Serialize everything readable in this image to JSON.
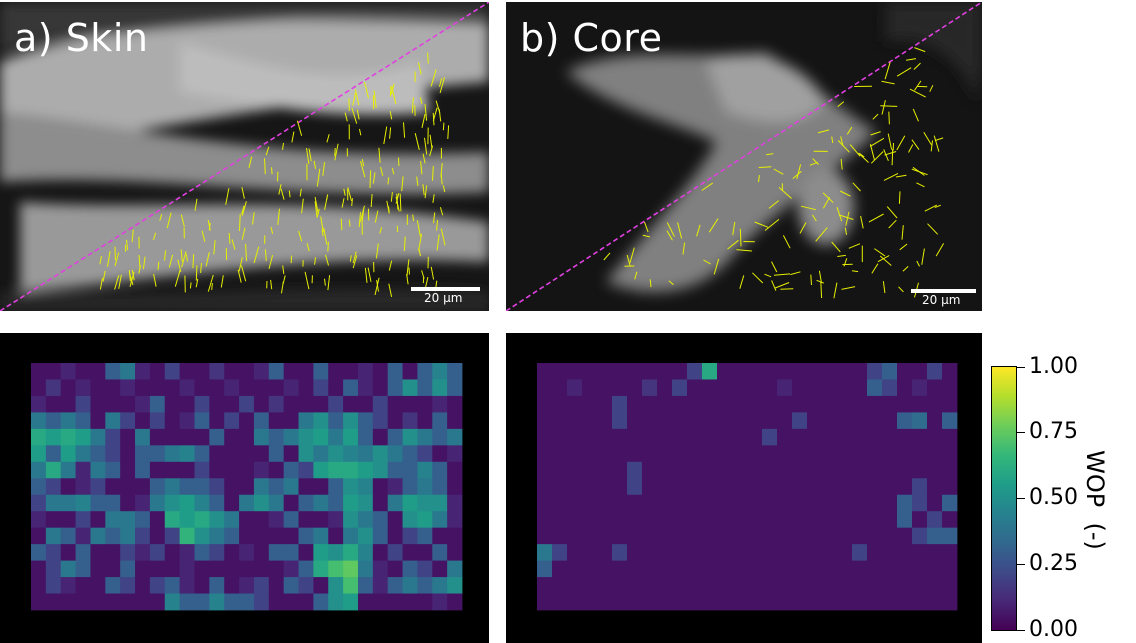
{
  "panels": {
    "a": {
      "label": "a) Skin",
      "scalebar_text": "20 μm"
    },
    "b": {
      "label": "b) Core",
      "scalebar_text": "20 μm"
    }
  },
  "colorbar": {
    "title": "WOP  (-)",
    "ticks": [
      "1.00",
      "0.75",
      "0.50",
      "0.25",
      "0.00"
    ],
    "colormap": "viridis",
    "range": [
      0,
      1
    ]
  },
  "colors": {
    "diagonal": "#e040e0",
    "orientation_lines": "#e8f000",
    "masked_background": "#000000"
  },
  "chart_data": [
    {
      "type": "heatmap",
      "panel": "c",
      "rows": 15,
      "cols": 29,
      "zlim": [
        0,
        1
      ],
      "values": [
        [
          0.05,
          0.05,
          0.1,
          0.05,
          0.05,
          0.3,
          0.4,
          0.1,
          0.05,
          0.2,
          0.05,
          0.05,
          0.15,
          0.05,
          0.05,
          0.1,
          0.3,
          0.05,
          0.05,
          0.3,
          0.05,
          0.05,
          0.1,
          0.05,
          0.3,
          0.05,
          0.3,
          0.45,
          0.3
        ],
        [
          0.05,
          0.15,
          0.05,
          0.1,
          0.05,
          0.05,
          0.1,
          0.05,
          0.05,
          0.05,
          0.1,
          0.05,
          0.05,
          0.1,
          0.05,
          0.05,
          0.05,
          0.1,
          0.05,
          0.2,
          0.05,
          0.3,
          0.1,
          0.05,
          0.3,
          0.5,
          0.3,
          0.5,
          0.3
        ],
        [
          0.1,
          0.05,
          0.05,
          0.2,
          0.05,
          0.05,
          0.05,
          0.1,
          0.3,
          0.05,
          0.05,
          0.2,
          0.05,
          0.05,
          0.2,
          0.05,
          0.15,
          0.05,
          0.05,
          0.05,
          0.2,
          0.05,
          0.05,
          0.2,
          0.05,
          0.05,
          0.05,
          0.1,
          0.05
        ],
        [
          0.4,
          0.3,
          0.4,
          0.3,
          0.05,
          0.4,
          0.2,
          0.05,
          0.2,
          0.05,
          0.1,
          0.3,
          0.05,
          0.2,
          0.05,
          0.3,
          0.05,
          0.05,
          0.4,
          0.5,
          0.3,
          0.5,
          0.3,
          0.2,
          0.05,
          0.15,
          0.05,
          0.3,
          0.05
        ],
        [
          0.6,
          0.55,
          0.6,
          0.55,
          0.4,
          0.2,
          0.05,
          0.4,
          0.05,
          0.05,
          0.05,
          0.05,
          0.3,
          0.05,
          0.05,
          0.4,
          0.3,
          0.4,
          0.5,
          0.55,
          0.4,
          0.55,
          0.3,
          0.05,
          0.3,
          0.5,
          0.4,
          0.3,
          0.4
        ],
        [
          0.55,
          0.3,
          0.55,
          0.4,
          0.3,
          0.2,
          0.05,
          0.3,
          0.3,
          0.4,
          0.45,
          0.3,
          0.05,
          0.05,
          0.05,
          0.05,
          0.3,
          0.05,
          0.5,
          0.4,
          0.5,
          0.45,
          0.4,
          0.5,
          0.4,
          0.3,
          0.2,
          0.05,
          0.1
        ],
        [
          0.4,
          0.6,
          0.4,
          0.1,
          0.4,
          0.3,
          0.05,
          0.3,
          0.05,
          0.05,
          0.05,
          0.2,
          0.05,
          0.05,
          0.05,
          0.1,
          0.05,
          0.3,
          0.2,
          0.55,
          0.6,
          0.6,
          0.55,
          0.5,
          0.3,
          0.3,
          0.45,
          0.3,
          0.05
        ],
        [
          0.3,
          0.2,
          0.05,
          0.1,
          0.2,
          0.05,
          0.05,
          0.05,
          0.3,
          0.4,
          0.3,
          0.3,
          0.2,
          0.05,
          0.05,
          0.4,
          0.3,
          0.4,
          0.05,
          0.05,
          0.3,
          0.5,
          0.45,
          0.05,
          0.1,
          0.3,
          0.4,
          0.3,
          0.05
        ],
        [
          0.2,
          0.4,
          0.4,
          0.45,
          0.3,
          0.3,
          0.05,
          0.1,
          0.4,
          0.5,
          0.55,
          0.45,
          0.3,
          0.05,
          0.4,
          0.5,
          0.4,
          0.05,
          0.3,
          0.4,
          0.3,
          0.55,
          0.5,
          0.05,
          0.4,
          0.55,
          0.5,
          0.5,
          0.1
        ],
        [
          0.1,
          0.05,
          0.05,
          0.2,
          0.05,
          0.4,
          0.4,
          0.3,
          0.05,
          0.6,
          0.55,
          0.6,
          0.5,
          0.4,
          0.05,
          0.05,
          0.1,
          0.3,
          0.05,
          0.05,
          0.1,
          0.5,
          0.4,
          0.3,
          0.05,
          0.5,
          0.55,
          0.4,
          0.1
        ],
        [
          0.05,
          0.4,
          0.3,
          0.1,
          0.4,
          0.3,
          0.4,
          0.2,
          0.05,
          0.2,
          0.65,
          0.5,
          0.4,
          0.3,
          0.05,
          0.05,
          0.05,
          0.05,
          0.3,
          0.4,
          0.05,
          0.4,
          0.5,
          0.3,
          0.05,
          0.2,
          0.3,
          0.05,
          0.05
        ],
        [
          0.3,
          0.2,
          0.05,
          0.3,
          0.05,
          0.05,
          0.2,
          0.1,
          0.2,
          0.05,
          0.1,
          0.3,
          0.2,
          0.05,
          0.1,
          0.05,
          0.3,
          0.3,
          0.05,
          0.55,
          0.5,
          0.6,
          0.45,
          0.05,
          0.2,
          0.05,
          0.05,
          0.3,
          0.05
        ],
        [
          0.05,
          0.2,
          0.4,
          0.3,
          0.05,
          0.05,
          0.3,
          0.05,
          0.05,
          0.05,
          0.1,
          0.05,
          0.05,
          0.05,
          0.05,
          0.05,
          0.05,
          0.1,
          0.3,
          0.6,
          0.7,
          0.75,
          0.4,
          0.1,
          0.05,
          0.3,
          0.2,
          0.05,
          0.4
        ],
        [
          0.05,
          0.2,
          0.1,
          0.05,
          0.05,
          0.3,
          0.2,
          0.05,
          0.2,
          0.3,
          0.1,
          0.05,
          0.3,
          0.05,
          0.1,
          0.2,
          0.05,
          0.3,
          0.2,
          0.05,
          0.5,
          0.7,
          0.3,
          0.1,
          0.3,
          0.4,
          0.3,
          0.4,
          0.5
        ],
        [
          0.05,
          0.05,
          0.05,
          0.05,
          0.05,
          0.05,
          0.05,
          0.05,
          0.05,
          0.45,
          0.3,
          0.3,
          0.45,
          0.3,
          0.3,
          0.2,
          0.05,
          0.05,
          0.05,
          0.3,
          0.5,
          0.55,
          0.05,
          0.05,
          0.05,
          0.05,
          0.05,
          0.1,
          0.05
        ]
      ]
    },
    {
      "type": "heatmap",
      "panel": "d",
      "rows": 15,
      "cols": 28,
      "zlim": [
        0,
        1
      ],
      "values": [
        [
          0.05,
          0.05,
          0.05,
          0.05,
          0.05,
          0.05,
          0.05,
          0.05,
          0.05,
          0.05,
          0.2,
          0.6,
          0.05,
          0.05,
          0.05,
          0.05,
          0.05,
          0.05,
          0.05,
          0.05,
          0.05,
          0.05,
          0.2,
          0.3,
          0.05,
          0.05,
          0.2,
          0.05
        ],
        [
          0.05,
          0.05,
          0.1,
          0.05,
          0.05,
          0.05,
          0.05,
          0.15,
          0.05,
          0.2,
          0.05,
          0.05,
          0.05,
          0.05,
          0.05,
          0.05,
          0.1,
          0.05,
          0.05,
          0.05,
          0.05,
          0.05,
          0.3,
          0.2,
          0.05,
          0.1,
          0.05,
          0.05
        ],
        [
          0.05,
          0.05,
          0.05,
          0.05,
          0.05,
          0.2,
          0.05,
          0.05,
          0.05,
          0.05,
          0.05,
          0.05,
          0.05,
          0.05,
          0.05,
          0.05,
          0.05,
          0.05,
          0.05,
          0.05,
          0.05,
          0.05,
          0.05,
          0.05,
          0.05,
          0.05,
          0.05,
          0.05
        ],
        [
          0.05,
          0.05,
          0.05,
          0.05,
          0.05,
          0.2,
          0.05,
          0.05,
          0.05,
          0.05,
          0.05,
          0.05,
          0.05,
          0.05,
          0.05,
          0.05,
          0.05,
          0.2,
          0.05,
          0.05,
          0.05,
          0.05,
          0.05,
          0.05,
          0.3,
          0.35,
          0.05,
          0.3
        ],
        [
          0.05,
          0.05,
          0.05,
          0.05,
          0.05,
          0.05,
          0.05,
          0.05,
          0.05,
          0.05,
          0.05,
          0.05,
          0.05,
          0.05,
          0.05,
          0.2,
          0.05,
          0.05,
          0.05,
          0.05,
          0.05,
          0.05,
          0.05,
          0.05,
          0.05,
          0.05,
          0.05,
          0.05
        ],
        [
          0.05,
          0.05,
          0.05,
          0.05,
          0.05,
          0.05,
          0.05,
          0.05,
          0.05,
          0.05,
          0.05,
          0.05,
          0.05,
          0.05,
          0.05,
          0.05,
          0.05,
          0.05,
          0.05,
          0.05,
          0.05,
          0.05,
          0.05,
          0.05,
          0.05,
          0.05,
          0.05,
          0.05
        ],
        [
          0.05,
          0.05,
          0.05,
          0.05,
          0.05,
          0.05,
          0.2,
          0.05,
          0.05,
          0.05,
          0.05,
          0.05,
          0.05,
          0.05,
          0.05,
          0.05,
          0.05,
          0.05,
          0.05,
          0.05,
          0.05,
          0.05,
          0.05,
          0.05,
          0.05,
          0.05,
          0.05,
          0.05
        ],
        [
          0.05,
          0.05,
          0.05,
          0.05,
          0.05,
          0.05,
          0.2,
          0.05,
          0.05,
          0.05,
          0.05,
          0.05,
          0.05,
          0.05,
          0.05,
          0.05,
          0.05,
          0.05,
          0.05,
          0.05,
          0.05,
          0.05,
          0.05,
          0.05,
          0.05,
          0.2,
          0.05,
          0.05
        ],
        [
          0.05,
          0.05,
          0.05,
          0.05,
          0.05,
          0.05,
          0.05,
          0.05,
          0.05,
          0.05,
          0.05,
          0.05,
          0.05,
          0.05,
          0.05,
          0.05,
          0.05,
          0.05,
          0.05,
          0.05,
          0.05,
          0.05,
          0.05,
          0.05,
          0.3,
          0.2,
          0.05,
          0.3
        ],
        [
          0.05,
          0.05,
          0.05,
          0.05,
          0.05,
          0.05,
          0.05,
          0.05,
          0.05,
          0.05,
          0.05,
          0.05,
          0.05,
          0.05,
          0.05,
          0.05,
          0.05,
          0.05,
          0.05,
          0.05,
          0.05,
          0.05,
          0.05,
          0.05,
          0.3,
          0.05,
          0.2,
          0.05
        ],
        [
          0.05,
          0.05,
          0.05,
          0.05,
          0.05,
          0.05,
          0.05,
          0.05,
          0.05,
          0.05,
          0.05,
          0.05,
          0.05,
          0.05,
          0.05,
          0.05,
          0.05,
          0.05,
          0.05,
          0.05,
          0.05,
          0.05,
          0.05,
          0.05,
          0.05,
          0.2,
          0.3,
          0.3
        ],
        [
          0.4,
          0.2,
          0.05,
          0.05,
          0.05,
          0.2,
          0.05,
          0.05,
          0.05,
          0.05,
          0.05,
          0.05,
          0.05,
          0.05,
          0.05,
          0.05,
          0.05,
          0.05,
          0.05,
          0.05,
          0.05,
          0.2,
          0.05,
          0.05,
          0.05,
          0.05,
          0.05,
          0.05
        ],
        [
          0.3,
          0.05,
          0.05,
          0.05,
          0.05,
          0.05,
          0.05,
          0.05,
          0.05,
          0.05,
          0.05,
          0.05,
          0.05,
          0.05,
          0.05,
          0.05,
          0.05,
          0.05,
          0.05,
          0.05,
          0.05,
          0.05,
          0.05,
          0.05,
          0.05,
          0.05,
          0.05,
          0.05
        ],
        [
          0.05,
          0.05,
          0.05,
          0.05,
          0.05,
          0.05,
          0.05,
          0.05,
          0.05,
          0.05,
          0.05,
          0.05,
          0.05,
          0.05,
          0.05,
          0.05,
          0.05,
          0.05,
          0.05,
          0.05,
          0.05,
          0.05,
          0.05,
          0.05,
          0.05,
          0.05,
          0.05,
          0.05
        ],
        [
          0.05,
          0.05,
          0.05,
          0.05,
          0.05,
          0.05,
          0.05,
          0.05,
          0.05,
          0.05,
          0.05,
          0.05,
          0.05,
          0.05,
          0.05,
          0.05,
          0.05,
          0.05,
          0.05,
          0.05,
          0.05,
          0.05,
          0.05,
          0.05,
          0.05,
          0.05,
          0.05,
          0.05
        ]
      ]
    }
  ]
}
